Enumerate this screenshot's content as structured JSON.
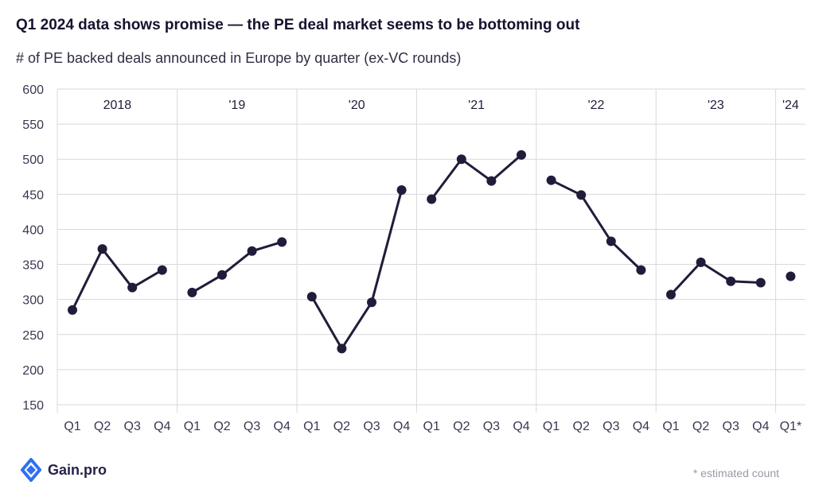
{
  "header": {
    "title": "Q1 2024 data shows promise — the PE deal market seems to be bottoming out",
    "subtitle": "# of PE backed deals announced in Europe by quarter (ex-VC rounds)"
  },
  "footer": {
    "brand": "Gain.pro",
    "brand_icon": "gain-pro-logo-icon",
    "note": "* estimated count"
  },
  "colors": {
    "line": "#1f1d3a",
    "grid": "#d9d9de",
    "text": "#3a3850",
    "brand_blue": "#2f6ff0"
  },
  "chart_data": {
    "type": "line",
    "title": "Q1 2024 data shows promise — the PE deal market seems to be bottoming out",
    "subtitle": "# of PE backed deals announced in Europe by quarter (ex-VC rounds)",
    "ylim": [
      150,
      600
    ],
    "yticks": [
      150,
      200,
      250,
      300,
      350,
      400,
      450,
      500,
      550,
      600
    ],
    "grid": true,
    "xlabel": "",
    "ylabel": "",
    "years": [
      {
        "label": "2018",
        "quarters": [
          "Q1",
          "Q2",
          "Q3",
          "Q4"
        ],
        "values": [
          285,
          372,
          317,
          342
        ]
      },
      {
        "label": "'19",
        "quarters": [
          "Q1",
          "Q2",
          "Q3",
          "Q4"
        ],
        "values": [
          310,
          335,
          369,
          382
        ]
      },
      {
        "label": "'20",
        "quarters": [
          "Q1",
          "Q2",
          "Q3",
          "Q4"
        ],
        "values": [
          304,
          230,
          296,
          456
        ]
      },
      {
        "label": "'21",
        "quarters": [
          "Q1",
          "Q2",
          "Q3",
          "Q4"
        ],
        "values": [
          443,
          500,
          469,
          506
        ]
      },
      {
        "label": "'22",
        "quarters": [
          "Q1",
          "Q2",
          "Q3",
          "Q4"
        ],
        "values": [
          470,
          449,
          383,
          342
        ]
      },
      {
        "label": "'23",
        "quarters": [
          "Q1",
          "Q2",
          "Q3",
          "Q4"
        ],
        "values": [
          307,
          353,
          326,
          324
        ]
      },
      {
        "label": "'24",
        "quarters": [
          "Q1*"
        ],
        "values": [
          333
        ]
      }
    ]
  }
}
